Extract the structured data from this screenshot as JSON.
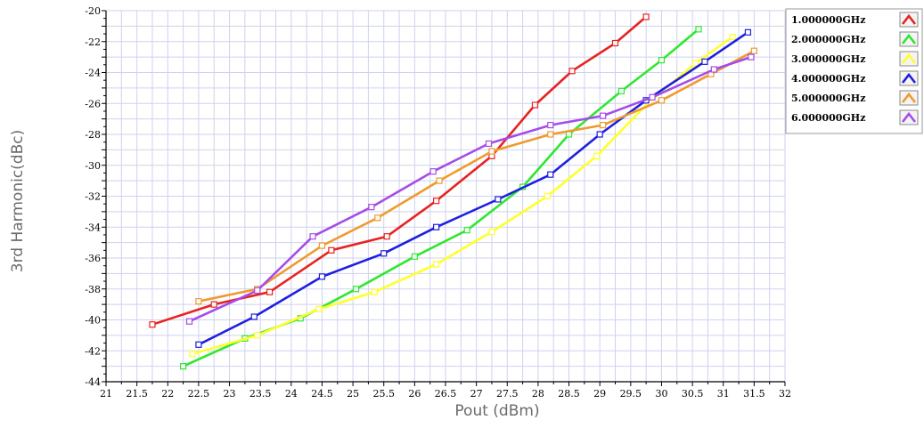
{
  "chart_data": {
    "type": "line",
    "xlabel": "Pout (dBm)",
    "ylabel": "3rd Harmonic(dBc)",
    "xlim": [
      21,
      32
    ],
    "ylim": [
      -44,
      -20
    ],
    "xticks": [
      "21",
      "21.5",
      "22",
      "22.5",
      "23",
      "23.5",
      "24",
      "24.5",
      "25",
      "25.5",
      "26",
      "26.5",
      "27",
      "27.5",
      "28",
      "28.5",
      "29",
      "29.5",
      "30",
      "30.5",
      "31",
      "31.5",
      "32"
    ],
    "yticks": [
      "-20",
      "-22",
      "-24",
      "-26",
      "-28",
      "-30",
      "-32",
      "-34",
      "-36",
      "-38",
      "-40",
      "-42",
      "-44"
    ],
    "grid": true,
    "legend_position": "top-right",
    "series": [
      {
        "name": "1.000000GHz",
        "color": "#e8231f",
        "points": [
          [
            21.75,
            -40.3
          ],
          [
            22.75,
            -39.0
          ],
          [
            23.65,
            -38.2
          ],
          [
            24.65,
            -35.5
          ],
          [
            25.55,
            -34.6
          ],
          [
            26.35,
            -32.3
          ],
          [
            27.25,
            -29.4
          ],
          [
            27.95,
            -26.1
          ],
          [
            28.55,
            -23.9
          ],
          [
            29.25,
            -22.1
          ],
          [
            29.75,
            -20.4
          ]
        ]
      },
      {
        "name": "2.000000GHz",
        "color": "#2ee82e",
        "points": [
          [
            22.25,
            -43.0
          ],
          [
            23.25,
            -41.2
          ],
          [
            24.15,
            -39.9
          ],
          [
            25.05,
            -38.0
          ],
          [
            26.0,
            -35.9
          ],
          [
            26.85,
            -34.2
          ],
          [
            27.75,
            -31.4
          ],
          [
            28.5,
            -28.0
          ],
          [
            29.35,
            -25.2
          ],
          [
            30.0,
            -23.2
          ],
          [
            30.6,
            -21.2
          ]
        ]
      },
      {
        "name": "3.000000GHz",
        "color": "#ffff2a",
        "points": [
          [
            22.4,
            -42.2
          ],
          [
            23.45,
            -41.0
          ],
          [
            24.45,
            -39.3
          ],
          [
            25.35,
            -38.2
          ],
          [
            26.35,
            -36.4
          ],
          [
            27.25,
            -34.3
          ],
          [
            28.15,
            -32.0
          ],
          [
            28.95,
            -29.4
          ],
          [
            29.8,
            -25.9
          ],
          [
            30.55,
            -23.4
          ],
          [
            31.15,
            -21.7
          ]
        ]
      },
      {
        "name": "4.000000GHz",
        "color": "#1f1fe0",
        "points": [
          [
            22.5,
            -41.6
          ],
          [
            23.4,
            -39.8
          ],
          [
            24.5,
            -37.2
          ],
          [
            25.5,
            -35.7
          ],
          [
            26.35,
            -34.0
          ],
          [
            27.35,
            -32.2
          ],
          [
            28.2,
            -30.6
          ],
          [
            29.0,
            -28.0
          ],
          [
            29.75,
            -25.8
          ],
          [
            30.7,
            -23.3
          ],
          [
            31.4,
            -21.4
          ]
        ]
      },
      {
        "name": "5.000000GHz",
        "color": "#f09a2e",
        "points": [
          [
            22.5,
            -38.8
          ],
          [
            23.45,
            -38.0
          ],
          [
            24.5,
            -35.2
          ],
          [
            25.4,
            -33.4
          ],
          [
            26.4,
            -31.0
          ],
          [
            27.25,
            -29.1
          ],
          [
            28.2,
            -28.0
          ],
          [
            29.05,
            -27.4
          ],
          [
            30.0,
            -25.8
          ],
          [
            30.8,
            -24.1
          ],
          [
            31.5,
            -22.6
          ]
        ]
      },
      {
        "name": "6.000000GHz",
        "color": "#a64ce8",
        "points": [
          [
            22.35,
            -40.1
          ],
          [
            23.45,
            -38.1
          ],
          [
            24.35,
            -34.6
          ],
          [
            25.3,
            -32.7
          ],
          [
            26.3,
            -30.4
          ],
          [
            27.2,
            -28.6
          ],
          [
            28.2,
            -27.4
          ],
          [
            29.05,
            -26.8
          ],
          [
            29.85,
            -25.6
          ],
          [
            30.85,
            -23.8
          ],
          [
            31.45,
            -23.0
          ]
        ]
      }
    ]
  }
}
